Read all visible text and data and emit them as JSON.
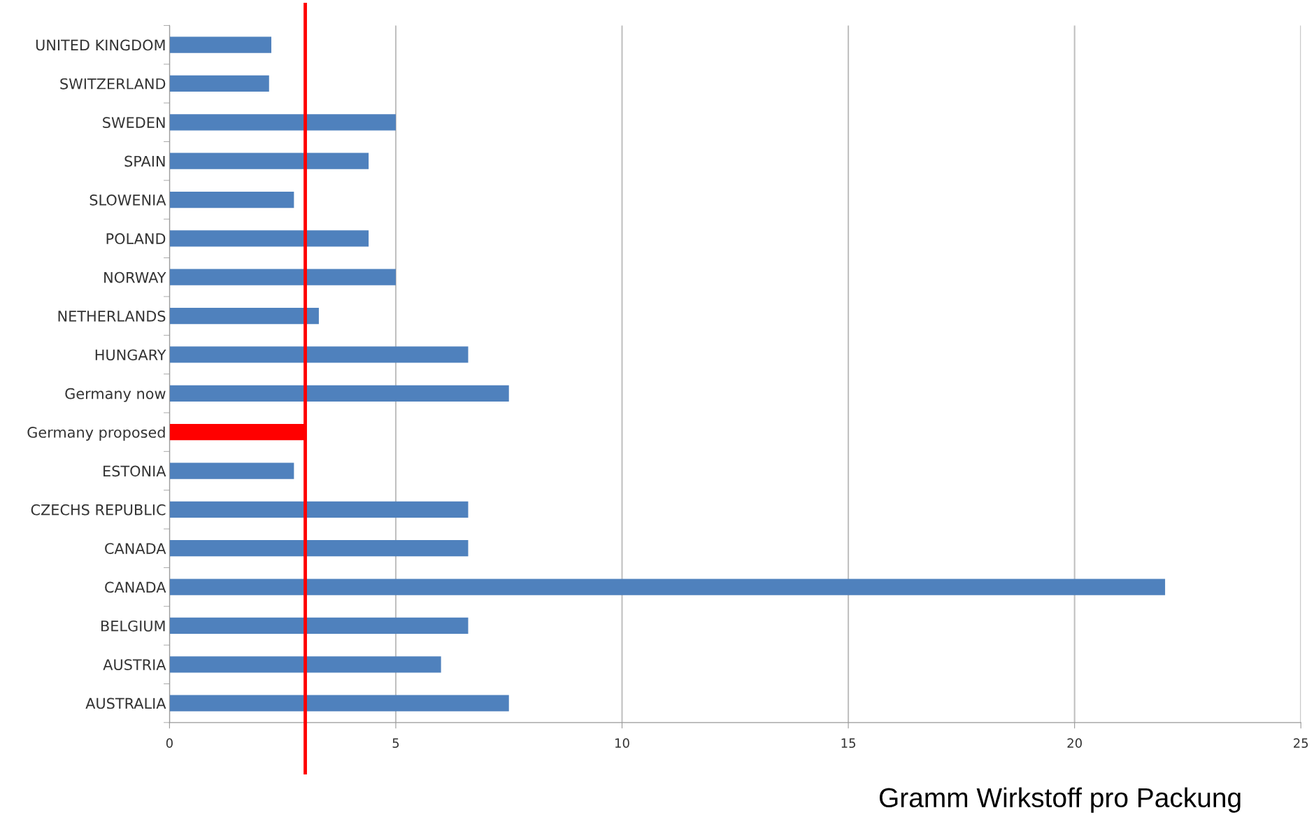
{
  "chart_data": {
    "type": "bar",
    "orientation": "horizontal",
    "categories": [
      "UNITED KINGDOM",
      "SWITZERLAND",
      "SWEDEN",
      "SPAIN",
      "SLOWENIA",
      "POLAND",
      "NORWAY",
      "NETHERLANDS",
      "HUNGARY",
      "Germany now",
      "Germany proposed",
      "ESTONIA",
      "CZECHS REPUBLIC",
      "CANADA",
      "CANADA",
      "BELGIUM",
      "AUSTRIA",
      "AUSTRALIA"
    ],
    "values": [
      2.25,
      2.2,
      5,
      4.4,
      2.75,
      4.4,
      5,
      3.3,
      6.6,
      7.5,
      3,
      2.75,
      6.6,
      6.6,
      22,
      6.6,
      6,
      7.5
    ],
    "colors": [
      "#4f81bd",
      "#4f81bd",
      "#4f81bd",
      "#4f81bd",
      "#4f81bd",
      "#4f81bd",
      "#4f81bd",
      "#4f81bd",
      "#4f81bd",
      "#4f81bd",
      "#ff0000",
      "#4f81bd",
      "#4f81bd",
      "#4f81bd",
      "#4f81bd",
      "#4f81bd",
      "#4f81bd",
      "#4f81bd"
    ],
    "xlabel": "Gramm Wirkstoff pro Packung",
    "xlim": [
      0,
      25
    ],
    "xticks": [
      0,
      5,
      10,
      15,
      20,
      25
    ],
    "grid": "x",
    "legend": false,
    "ref_lines": [
      {
        "axis": "x",
        "value": 3,
        "color": "#ff0000",
        "line_style": "solid"
      }
    ]
  }
}
